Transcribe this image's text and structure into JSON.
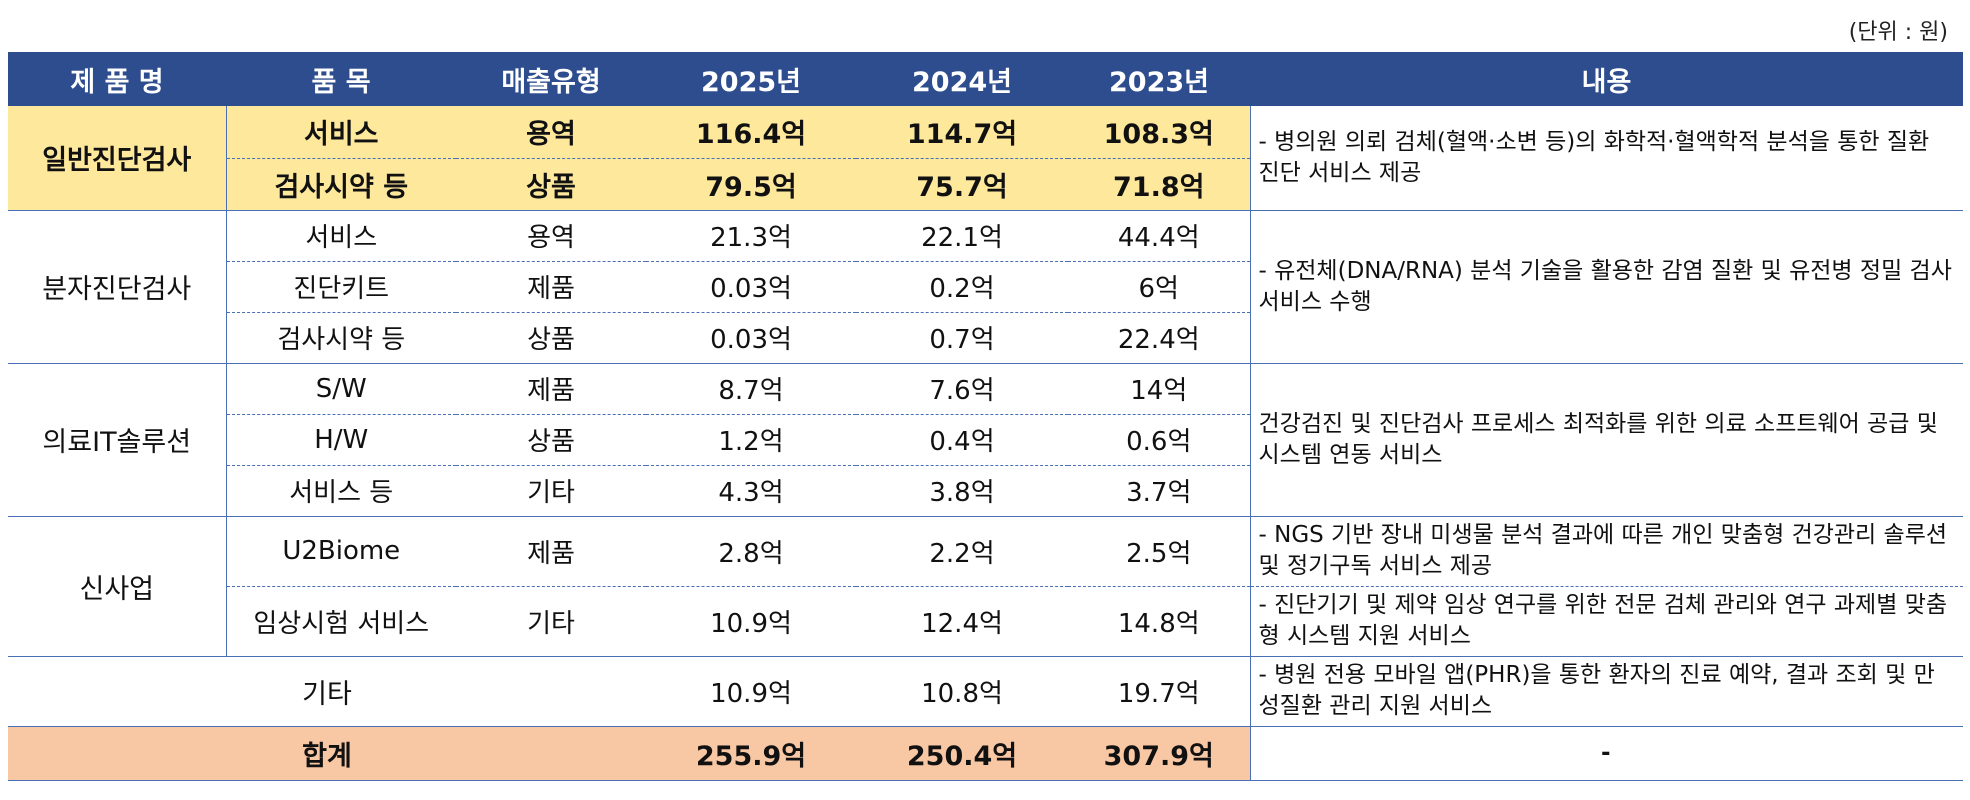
{
  "unit_note": "(단위 : 원)",
  "headers": [
    "제 품 명",
    "품 목",
    "매출유형",
    "2025년",
    "2024년",
    "2023년",
    "내용"
  ],
  "groups": {
    "g1": {
      "name": "일반진단검사",
      "desc": "- 병의원 의뢰 검체(혈액·소변 등)의 화학적·혈액학적 분석을 통한 질환 진단 서비스 제공",
      "rows": [
        {
          "item": "서비스",
          "type": "용역",
          "y2025": "116.4억",
          "y2024": "114.7억",
          "y2023": "108.3억"
        },
        {
          "item": "검사시약 등",
          "type": "상품",
          "y2025": "79.5억",
          "y2024": "75.7억",
          "y2023": "71.8억"
        }
      ]
    },
    "g2": {
      "name": "분자진단검사",
      "desc": "- 유전체(DNA/RNA) 분석 기술을 활용한 감염 질환 및 유전병 정밀 검사 서비스 수행",
      "rows": [
        {
          "item": "서비스",
          "type": "용역",
          "y2025": "21.3억",
          "y2024": "22.1억",
          "y2023": "44.4억"
        },
        {
          "item": "진단키트",
          "type": "제품",
          "y2025": "0.03억",
          "y2024": "0.2억",
          "y2023": "6억"
        },
        {
          "item": "검사시약 등",
          "type": "상품",
          "y2025": "0.03억",
          "y2024": "0.7억",
          "y2023": "22.4억"
        }
      ]
    },
    "g3": {
      "name": "의료IT솔루션",
      "desc": "건강검진 및 진단검사 프로세스 최적화를 위한 의료 소프트웨어 공급 및 시스템 연동 서비스",
      "rows": [
        {
          "item": "S/W",
          "type": "제품",
          "y2025": "8.7억",
          "y2024": "7.6억",
          "y2023": "14억"
        },
        {
          "item": "H/W",
          "type": "상품",
          "y2025": "1.2억",
          "y2024": "0.4억",
          "y2023": "0.6억"
        },
        {
          "item": "서비스 등",
          "type": "기타",
          "y2025": "4.3억",
          "y2024": "3.8억",
          "y2023": "3.7억"
        }
      ]
    },
    "g4": {
      "name": "신사업",
      "rows": [
        {
          "item": "U2Biome",
          "type": "제품",
          "y2025": "2.8억",
          "y2024": "2.2억",
          "y2023": "2.5억",
          "desc": "- NGS 기반 장내 미생물 분석 결과에 따른 개인 맞춤형 건강관리 솔루션 및 정기구독 서비스 제공"
        },
        {
          "item": "임상시험 서비스",
          "type": "기타",
          "y2025": "10.9억",
          "y2024": "12.4억",
          "y2023": "14.8억",
          "desc": "- 진단기기 및 제약 임상 연구를 위한 전문 검체 관리와 연구 과제별 맞춤형 시스템 지원 서비스"
        }
      ]
    },
    "etc": {
      "name": "기타",
      "y2025": "10.9억",
      "y2024": "10.8억",
      "y2023": "19.7억",
      "desc": "- 병원 전용 모바일 앱(PHR)을 통한 환자의 진료 예약, 결과 조회 및 만성질환 관리 지원 서비스"
    }
  },
  "total": {
    "label": "합계",
    "y2025": "255.9억",
    "y2024": "250.4억",
    "y2023": "307.9억",
    "desc": "-"
  }
}
